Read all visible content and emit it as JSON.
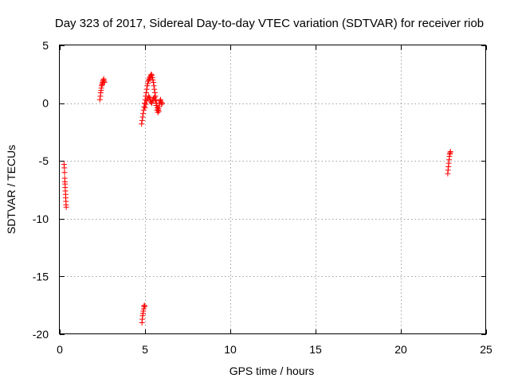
{
  "chart_data": {
    "type": "scatter",
    "title": "Day 323 of 2017, Sidereal Day-to-day VTEC variation (SDTVAR) for receiver riob",
    "xlabel": "GPS time / hours",
    "ylabel": "SDTVAR / TECUs",
    "xlim": [
      0,
      25
    ],
    "ylim": [
      -20,
      5
    ],
    "x_ticks": [
      "0",
      "5",
      "10",
      "15",
      "20",
      "25"
    ],
    "y_ticks": [
      "5",
      "0",
      "-5",
      "-10",
      "-15",
      "-20"
    ],
    "grid": true,
    "marker": "+",
    "color": "#ff0000",
    "series": [
      {
        "points": [
          [
            0.25,
            -5.3
          ],
          [
            0.27,
            -5.6
          ],
          [
            0.28,
            -6.0
          ],
          [
            0.29,
            -6.5
          ],
          [
            0.3,
            -6.8
          ],
          [
            0.31,
            -7.0
          ],
          [
            0.32,
            -7.3
          ],
          [
            0.33,
            -7.6
          ],
          [
            0.34,
            -7.9
          ],
          [
            0.35,
            -8.2
          ],
          [
            0.36,
            -8.5
          ],
          [
            0.37,
            -8.8
          ],
          [
            0.38,
            -9.0
          ],
          [
            2.35,
            0.3
          ],
          [
            2.38,
            0.6
          ],
          [
            2.4,
            0.9
          ],
          [
            2.42,
            1.1
          ],
          [
            2.44,
            1.3
          ],
          [
            2.46,
            1.5
          ],
          [
            2.48,
            1.6
          ],
          [
            2.5,
            1.7
          ],
          [
            2.52,
            1.8
          ],
          [
            2.54,
            1.9
          ],
          [
            2.56,
            2.0
          ],
          [
            2.58,
            2.1
          ],
          [
            2.6,
            1.9
          ],
          [
            2.62,
            1.8
          ],
          [
            4.8,
            -1.8
          ],
          [
            4.83,
            -1.5
          ],
          [
            4.86,
            -1.2
          ],
          [
            4.89,
            -0.9
          ],
          [
            4.92,
            -0.6
          ],
          [
            4.95,
            -0.3
          ],
          [
            4.98,
            0.0
          ],
          [
            5.01,
            0.3
          ],
          [
            5.04,
            0.6
          ],
          [
            5.07,
            0.9
          ],
          [
            5.1,
            1.2
          ],
          [
            5.13,
            1.5
          ],
          [
            5.16,
            1.7
          ],
          [
            5.19,
            1.9
          ],
          [
            5.22,
            2.0
          ],
          [
            5.25,
            2.1
          ],
          [
            5.28,
            2.2
          ],
          [
            5.31,
            2.3
          ],
          [
            5.34,
            2.4
          ],
          [
            5.37,
            2.5
          ],
          [
            5.4,
            2.4
          ],
          [
            5.43,
            2.2
          ],
          [
            5.46,
            2.0
          ],
          [
            5.49,
            1.8
          ],
          [
            5.52,
            1.5
          ],
          [
            5.55,
            1.2
          ],
          [
            5.58,
            0.9
          ],
          [
            5.61,
            0.6
          ],
          [
            5.64,
            0.3
          ],
          [
            5.67,
            0.0
          ],
          [
            5.7,
            -0.2
          ],
          [
            5.73,
            -0.4
          ],
          [
            5.76,
            -0.6
          ],
          [
            5.79,
            -0.5
          ],
          [
            5.82,
            -0.3
          ],
          [
            5.85,
            0.0
          ],
          [
            5.88,
            0.2
          ],
          [
            5.91,
            0.3
          ],
          [
            5.94,
            0.1
          ],
          [
            5.97,
            -0.1
          ],
          [
            6.0,
            0.0
          ],
          [
            5.0,
            -0.4
          ],
          [
            5.05,
            -0.1
          ],
          [
            5.1,
            0.2
          ],
          [
            5.15,
            0.4
          ],
          [
            5.2,
            0.6
          ],
          [
            5.25,
            0.5
          ],
          [
            5.3,
            0.3
          ],
          [
            5.35,
            0.1
          ],
          [
            5.4,
            0.0
          ],
          [
            5.45,
            0.2
          ],
          [
            5.5,
            0.4
          ],
          [
            5.55,
            0.5
          ],
          [
            5.6,
            0.2
          ],
          [
            5.65,
            -0.2
          ],
          [
            5.7,
            -0.6
          ],
          [
            5.75,
            -0.8
          ],
          [
            5.8,
            -0.7
          ],
          [
            4.82,
            -19.0
          ],
          [
            4.84,
            -18.7
          ],
          [
            4.86,
            -18.4
          ],
          [
            4.88,
            -18.2
          ],
          [
            4.9,
            -18.0
          ],
          [
            4.92,
            -17.8
          ],
          [
            4.94,
            -17.6
          ],
          [
            4.96,
            -17.5
          ],
          [
            4.98,
            -17.6
          ],
          [
            22.75,
            -6.1
          ],
          [
            22.77,
            -5.8
          ],
          [
            22.79,
            -5.5
          ],
          [
            22.81,
            -5.2
          ],
          [
            22.83,
            -4.9
          ],
          [
            22.85,
            -4.6
          ],
          [
            22.87,
            -4.4
          ],
          [
            22.89,
            -4.3
          ],
          [
            22.91,
            -4.2
          ]
        ]
      }
    ]
  }
}
